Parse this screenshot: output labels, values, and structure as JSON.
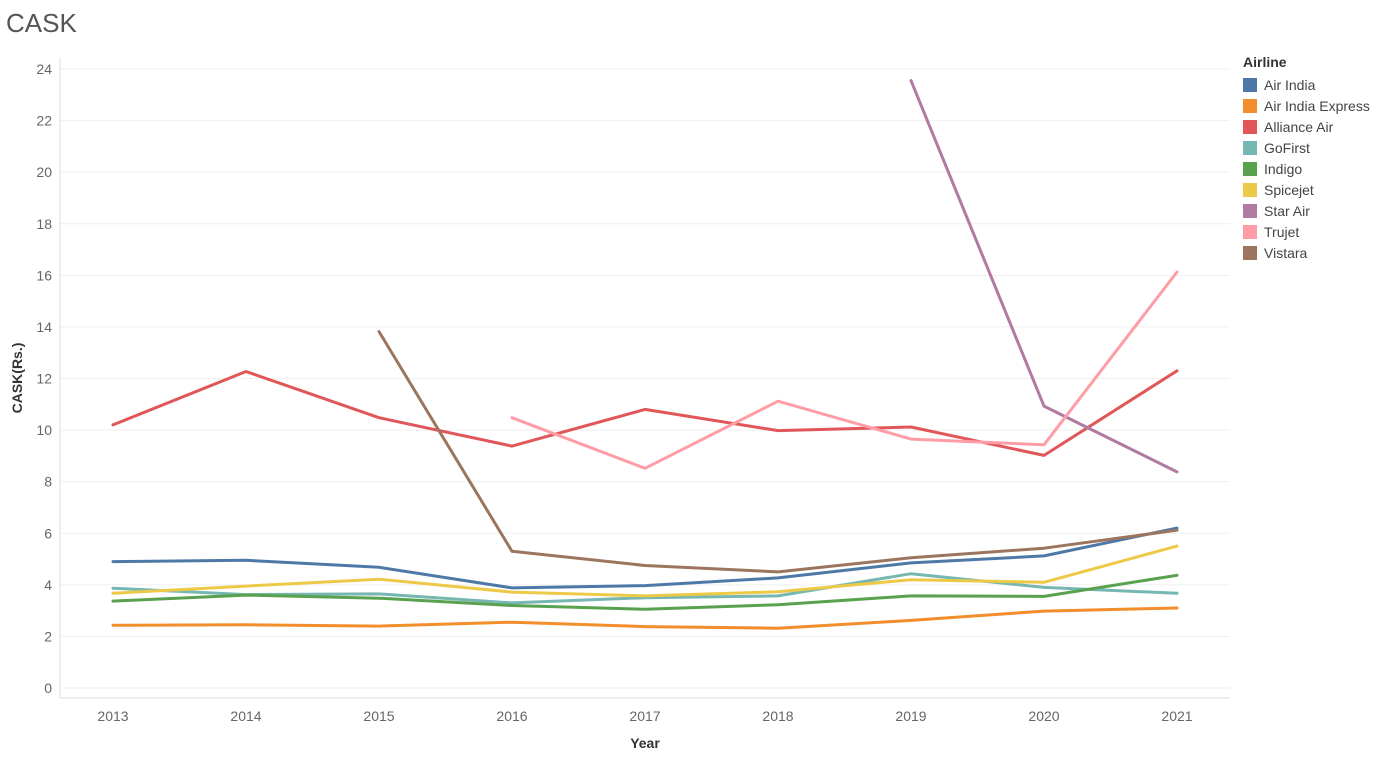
{
  "chart_data": {
    "type": "line",
    "title": "CASK",
    "xlabel": "Year",
    "ylabel": "CASK(Rs.)",
    "x": [
      2013,
      2014,
      2015,
      2016,
      2017,
      2018,
      2019,
      2020,
      2021
    ],
    "ylim": [
      0,
      24
    ],
    "yticks": [
      0,
      2,
      4,
      6,
      8,
      10,
      12,
      14,
      16,
      18,
      20,
      22,
      24
    ],
    "grid": true,
    "legend": {
      "title": "Airline",
      "position": "right"
    },
    "series": [
      {
        "name": "Air India",
        "color": "#4e79a7",
        "values": [
          4.9,
          4.95,
          4.68,
          3.88,
          3.97,
          4.27,
          4.85,
          5.12,
          6.2
        ]
      },
      {
        "name": "Air India Express",
        "color": "#f28e2b",
        "values": [
          2.43,
          2.45,
          2.4,
          2.55,
          2.38,
          2.32,
          2.62,
          2.98,
          3.1
        ]
      },
      {
        "name": "Alliance Air",
        "color": "#e15759",
        "values": [
          10.2,
          12.27,
          10.48,
          9.38,
          10.8,
          9.98,
          10.12,
          9.02,
          12.3
        ]
      },
      {
        "name": "GoFirst",
        "color": "#76b7b2",
        "values": [
          3.87,
          3.62,
          3.65,
          3.3,
          3.5,
          3.57,
          4.43,
          3.9,
          3.67
        ]
      },
      {
        "name": "Indigo",
        "color": "#59a14f",
        "values": [
          3.37,
          3.6,
          3.48,
          3.2,
          3.05,
          3.23,
          3.57,
          3.55,
          4.37
        ]
      },
      {
        "name": "Spicejet",
        "color": "#edc948",
        "values": [
          3.67,
          3.95,
          4.22,
          3.72,
          3.57,
          3.73,
          4.2,
          4.1,
          5.5
        ]
      },
      {
        "name": "Star Air",
        "color": "#b07aa1",
        "values": [
          null,
          null,
          null,
          null,
          null,
          null,
          23.55,
          10.93,
          8.38
        ]
      },
      {
        "name": "Trujet",
        "color": "#ff9da7",
        "values": [
          null,
          null,
          null,
          10.48,
          8.52,
          11.12,
          9.65,
          9.43,
          16.13
        ]
      },
      {
        "name": "Vistara",
        "color": "#9c755f",
        "values": [
          null,
          null,
          13.82,
          5.3,
          4.75,
          4.5,
          5.05,
          5.42,
          6.12
        ]
      }
    ]
  }
}
